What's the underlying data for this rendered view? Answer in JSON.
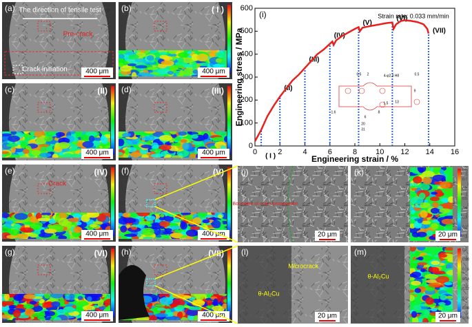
{
  "micrographs": [
    {
      "label": "(a)",
      "scale_bar": "400 μm",
      "annotations": [
        "The direction of tensile test",
        "Pre-crack",
        "Crack initiation"
      ]
    },
    {
      "label": "(b)",
      "stage": "( I )",
      "scale_bar": "400 μm"
    },
    {
      "label": "(c)",
      "stage": "(II)",
      "scale_bar": "400 μm"
    },
    {
      "label": "(d)",
      "stage": "(III)",
      "scale_bar": "400 μm"
    },
    {
      "label": "(e)",
      "stage": "(IV)",
      "scale_bar": "400 μm",
      "annotations": [
        "Crack"
      ]
    },
    {
      "label": "(f)",
      "stage": "(V)",
      "scale_bar": "400 μm"
    },
    {
      "label": "(g)",
      "stage": "(VI)",
      "scale_bar": "400 μm"
    },
    {
      "label": "(h)",
      "stage": "(VII)",
      "scale_bar": "400 μm"
    }
  ],
  "details": [
    {
      "label": "(j)",
      "scale_bar": "20 μm",
      "annotations": [
        "Boundary of crack propagation"
      ]
    },
    {
      "label": "(k)",
      "scale_bar": "20 μm",
      "colorbar": [
        0.8,
        0.7,
        0.6,
        0.5,
        0.4,
        0.3,
        0.2,
        0.1
      ]
    },
    {
      "label": "(l)",
      "scale_bar": "20 μm",
      "annotations": [
        "Microcrack",
        "θ-Al₂Cu"
      ]
    },
    {
      "label": "(m)",
      "scale_bar": "20 μm",
      "annotations": [
        "θ-Al₂Cu"
      ],
      "colorbar": [
        0.2,
        0.18,
        0.16,
        0.14,
        0.12,
        0.1,
        0.08,
        0.06
      ]
    }
  ],
  "chart_data": {
    "type": "line",
    "panel_label": "(i)",
    "annotation": "Strain rate:  0.033 mm/min",
    "x_label": "Engineering strain / %",
    "y_label": "Engineering stress / MPa",
    "x": [
      0,
      0.5,
      1,
      1.5,
      2,
      2.5,
      3,
      3.5,
      4,
      4.5,
      5,
      5.5,
      6,
      6.2,
      6.3,
      6.5,
      7,
      7.5,
      8,
      8.3,
      8.4,
      8.6,
      9,
      9.5,
      10,
      10.5,
      11,
      11.1,
      11.3,
      11.7,
      12,
      12.5,
      13,
      13.5,
      13.8,
      13.9
    ],
    "values": [
      20,
      70,
      130,
      175,
      215,
      250,
      285,
      310,
      340,
      370,
      400,
      420,
      445,
      455,
      440,
      460,
      480,
      495,
      510,
      518,
      500,
      515,
      520,
      525,
      530,
      535,
      538,
      510,
      530,
      545,
      548,
      545,
      540,
      530,
      510,
      490
    ],
    "color": "#e8201c",
    "stages": {
      "labels": [
        "( I )",
        "(II)",
        "(III)",
        "(IV)",
        "(V)",
        "(VI)",
        "(VII)"
      ],
      "x": [
        0.5,
        2,
        4,
        6,
        8.3,
        11,
        13.9
      ],
      "values": [
        70,
        215,
        340,
        445,
        518,
        538,
        490
      ],
      "color": "#2d63d8"
    },
    "specimen_labels": [
      "0.5",
      "2",
      "4-φ2.3 H8",
      "0.5",
      "1.6",
      "6",
      "8",
      "20",
      "31",
      "9",
      "13",
      "1.5"
    ],
    "xlim": [
      0,
      16
    ],
    "ylim": [
      0,
      600
    ],
    "xticks": [
      0,
      2,
      4,
      6,
      8,
      10,
      12,
      14,
      16
    ],
    "yticks": [
      0,
      100,
      200,
      300,
      400,
      500,
      600
    ]
  }
}
